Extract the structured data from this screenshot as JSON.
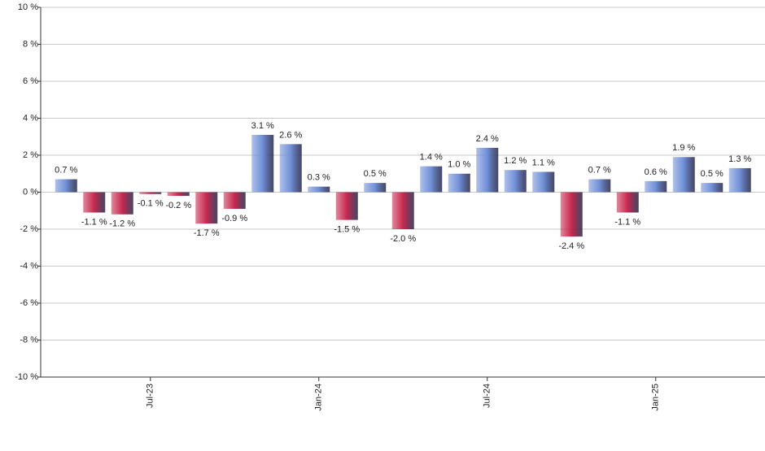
{
  "chart_data": {
    "type": "bar",
    "categories": [
      null,
      null,
      null,
      "Jul-23",
      null,
      null,
      null,
      null,
      null,
      "Jan-24",
      null,
      null,
      null,
      null,
      null,
      "Jul-24",
      null,
      null,
      null,
      null,
      null,
      "Jan-25",
      null,
      null,
      null
    ],
    "values": [
      0.7,
      -1.1,
      -1.2,
      -0.1,
      -0.2,
      -1.7,
      -0.9,
      3.1,
      2.6,
      0.3,
      -1.5,
      0.5,
      -2.0,
      1.4,
      1.0,
      2.4,
      1.2,
      1.1,
      -2.4,
      0.7,
      -1.1,
      0.6,
      1.9,
      0.5,
      1.3
    ],
    "value_labels": [
      "0.7 %",
      "-1.1 %",
      "-1.2 %",
      "-0.1 %",
      "-0.2 %",
      "-1.7 %",
      "-0.9 %",
      "3.1 %",
      "2.6 %",
      "0.3 %",
      "-1.5 %",
      "0.5 %",
      "-2.0 %",
      "1.4 %",
      "1.0 %",
      "2.4 %",
      "1.2 %",
      "1.1 %",
      "-2.4 %",
      "0.7 %",
      "-1.1 %",
      "0.6 %",
      "1.9 %",
      "0.5 %",
      "1.3 %"
    ],
    "positive_color": "#6f8fd8",
    "negative_color": "#c8284e",
    "ylim": [
      -10,
      10
    ],
    "yticks": [
      {
        "value": -10,
        "label": "-10 %"
      },
      {
        "value": -8,
        "label": "-8 %"
      },
      {
        "value": -6,
        "label": "-6 %"
      },
      {
        "value": -4,
        "label": "-4 %"
      },
      {
        "value": -2,
        "label": "-2 %"
      },
      {
        "value": 0,
        "label": "0 %"
      },
      {
        "value": 2,
        "label": "2 %"
      },
      {
        "value": 4,
        "label": "4 %"
      },
      {
        "value": 6,
        "label": "6 %"
      },
      {
        "value": 8,
        "label": "8 %"
      },
      {
        "value": 10,
        "label": "10 %"
      }
    ],
    "grid": true
  }
}
